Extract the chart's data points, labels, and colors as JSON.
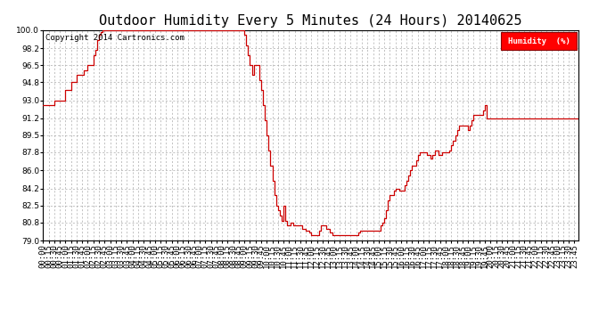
{
  "title": "Outdoor Humidity Every 5 Minutes (24 Hours) 20140625",
  "copyright": "Copyright 2014 Cartronics.com",
  "legend_label": "Humidity  (%)",
  "line_color": "#cc0000",
  "bg_color": "#ffffff",
  "plot_bg_color": "#ffffff",
  "grid_color": "#aaaaaa",
  "ylim": [
    79.0,
    100.0
  ],
  "yticks": [
    79.0,
    80.8,
    82.5,
    84.2,
    86.0,
    87.8,
    89.5,
    91.2,
    93.0,
    94.8,
    96.5,
    98.2,
    100.0
  ],
  "title_fontsize": 11,
  "axis_fontsize": 6.5,
  "note_fontsize": 6.5,
  "humidity_data": [
    92.5,
    92.5,
    92.5,
    92.5,
    92.5,
    92.5,
    93.0,
    93.0,
    93.0,
    93.0,
    93.0,
    93.0,
    94.0,
    94.0,
    94.0,
    94.8,
    94.8,
    94.8,
    95.5,
    95.5,
    95.5,
    95.5,
    96.0,
    96.0,
    96.5,
    96.5,
    96.5,
    97.5,
    98.0,
    99.0,
    99.5,
    99.8,
    100.0,
    100.0,
    100.0,
    100.0,
    100.0,
    100.0,
    100.0,
    100.0,
    100.0,
    100.0,
    100.0,
    100.0,
    100.0,
    100.0,
    100.0,
    100.0,
    100.0,
    100.0,
    100.0,
    100.0,
    100.0,
    100.0,
    100.0,
    100.0,
    100.0,
    100.0,
    100.0,
    100.0,
    100.0,
    100.0,
    100.0,
    100.0,
    100.0,
    100.0,
    100.0,
    100.0,
    100.0,
    100.0,
    100.0,
    100.0,
    100.0,
    100.0,
    100.0,
    100.0,
    100.0,
    100.0,
    100.0,
    100.0,
    100.0,
    100.0,
    100.0,
    100.0,
    100.0,
    100.0,
    100.0,
    100.0,
    100.0,
    100.0,
    100.0,
    100.0,
    100.0,
    100.0,
    100.0,
    100.0,
    100.0,
    100.0,
    100.0,
    100.0,
    100.0,
    100.0,
    100.0,
    100.0,
    100.0,
    100.0,
    100.0,
    100.0,
    99.5,
    98.5,
    97.5,
    96.5,
    95.5,
    96.5,
    96.5,
    96.5,
    95.0,
    94.0,
    92.5,
    91.0,
    89.5,
    88.0,
    86.5,
    85.0,
    83.5,
    82.5,
    82.0,
    81.5,
    81.0,
    82.5,
    81.0,
    80.5,
    80.5,
    80.8,
    80.5,
    80.5,
    80.5,
    80.5,
    80.5,
    80.2,
    80.2,
    80.0,
    80.0,
    79.8,
    79.5,
    79.5,
    79.5,
    79.5,
    80.0,
    80.5,
    80.5,
    80.5,
    80.2,
    80.2,
    79.8,
    79.5,
    79.5,
    79.5,
    79.5,
    79.5,
    79.5,
    79.5,
    79.5,
    79.5,
    79.5,
    79.5,
    79.5,
    79.5,
    79.5,
    79.8,
    80.0,
    80.0,
    80.0,
    80.0,
    80.0,
    80.0,
    80.0,
    80.0,
    80.0,
    80.0,
    80.0,
    80.5,
    80.8,
    81.2,
    82.0,
    83.0,
    83.5,
    83.5,
    84.0,
    84.2,
    84.2,
    84.0,
    84.0,
    84.0,
    84.5,
    85.0,
    85.5,
    86.0,
    86.5,
    86.5,
    87.0,
    87.5,
    87.8,
    87.8,
    87.8,
    87.8,
    87.5,
    87.5,
    87.2,
    87.5,
    88.0,
    88.0,
    87.5,
    87.5,
    87.8,
    87.8,
    87.8,
    87.8,
    88.0,
    88.5,
    89.0,
    89.5,
    90.0,
    90.5,
    90.5,
    90.5,
    90.5,
    90.5,
    90.0,
    90.5,
    91.0,
    91.5,
    91.5,
    91.5,
    91.5,
    91.5,
    92.0,
    92.5,
    91.2,
    91.2,
    91.2,
    91.2,
    91.2,
    91.2,
    91.2,
    91.2,
    91.2,
    91.2,
    91.2,
    91.2,
    91.2,
    91.2,
    91.2,
    91.2,
    91.2,
    91.2,
    91.2,
    91.2,
    91.2,
    91.2,
    91.2,
    91.2,
    91.2,
    91.2,
    91.2,
    91.2,
    91.2,
    91.2,
    91.2,
    91.2,
    91.2,
    91.2,
    91.2,
    91.2,
    91.2,
    91.2,
    91.2,
    91.2,
    91.2,
    91.2,
    91.2,
    91.2,
    91.2,
    91.2,
    91.2,
    91.2,
    91.2,
    91.2
  ]
}
